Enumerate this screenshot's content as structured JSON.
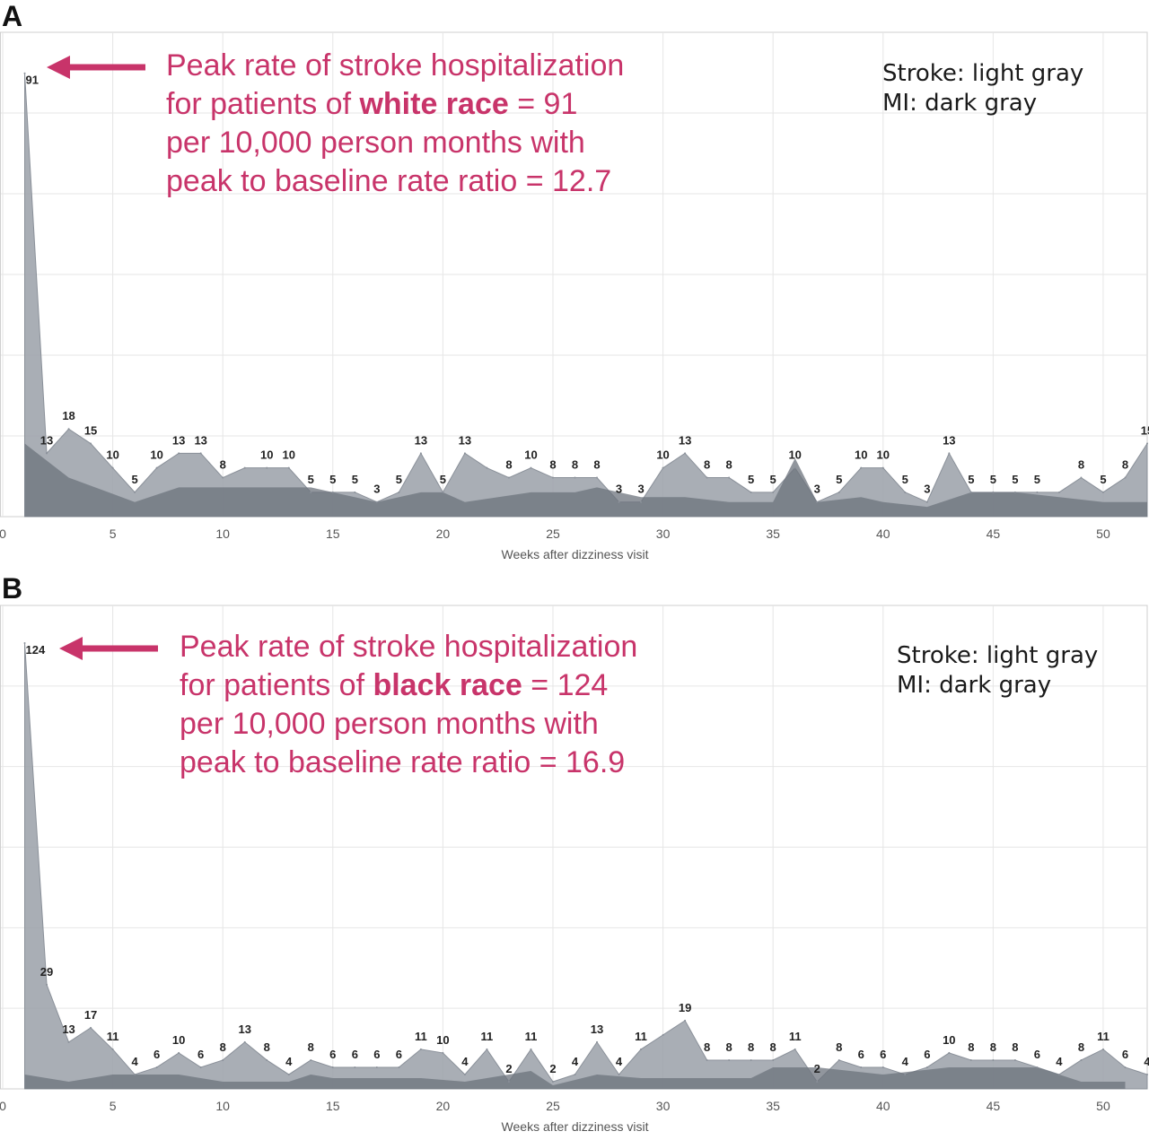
{
  "panels": [
    {
      "letter": "A",
      "annotation": {
        "line1": "Peak rate of stroke hospitalization",
        "line2_pre": "for patients of ",
        "line2_bold": "white race",
        "line2_post": " = 91",
        "line3": "per 10,000 person months with",
        "line4": "peak to baseline rate ratio = 12.7"
      },
      "legend": {
        "stroke": "Stroke: light gray",
        "mi": "MI: dark gray"
      },
      "xlabel": "Weeks after dizziness visit"
    },
    {
      "letter": "B",
      "annotation": {
        "line1": "Peak rate of stroke hospitalization",
        "line2_pre": "for patients of ",
        "line2_bold": "black race",
        "line2_post": " = 124",
        "line3": "per 10,000 person months with",
        "line4": "peak to baseline rate ratio = 16.9"
      },
      "legend": {
        "stroke": "Stroke: light gray",
        "mi": "MI: dark gray"
      },
      "xlabel": "Weeks after dizziness visit"
    }
  ],
  "colors": {
    "stroke": "#9aa0a8",
    "mi": "#6c737c",
    "annotation": "#c8346a",
    "grid": "#e6e6e6"
  },
  "chart_data": [
    {
      "type": "area",
      "xlabel": "Weeks after dizziness visit",
      "xlim": [
        0,
        52
      ],
      "xticks": [
        0,
        5,
        10,
        15,
        20,
        25,
        30,
        35,
        40,
        45,
        50
      ],
      "ylim": [
        0,
        95
      ],
      "series": [
        {
          "name": "Stroke",
          "x": [
            1,
            2,
            3,
            4,
            5,
            6,
            7,
            8,
            9,
            10,
            11,
            12,
            13,
            14,
            15,
            16,
            17,
            18,
            19,
            20,
            21,
            22,
            23,
            24,
            25,
            26,
            27,
            28,
            29,
            30,
            31,
            32,
            33,
            34,
            35,
            36,
            37,
            38,
            39,
            40,
            41,
            42,
            43,
            44,
            45,
            46,
            47,
            48,
            49,
            50,
            51,
            52
          ],
          "values": [
            91,
            13,
            18,
            15,
            10,
            5,
            10,
            13,
            13,
            8,
            10,
            10,
            10,
            5,
            5,
            5,
            3,
            5,
            13,
            5,
            13,
            10,
            8,
            10,
            8,
            8,
            8,
            3,
            3,
            10,
            13,
            8,
            8,
            5,
            5,
            10,
            3,
            5,
            10,
            10,
            5,
            3,
            13,
            5,
            5,
            5,
            5,
            5,
            8,
            5,
            8,
            15
          ],
          "labels": [
            91,
            13,
            18,
            15,
            10,
            5,
            10,
            13,
            13,
            8,
            null,
            10,
            10,
            5,
            5,
            5,
            3,
            5,
            13,
            5,
            13,
            null,
            8,
            10,
            8,
            8,
            8,
            3,
            3,
            10,
            13,
            8,
            8,
            5,
            5,
            10,
            3,
            5,
            10,
            10,
            5,
            3,
            13,
            5,
            5,
            5,
            5,
            null,
            8,
            5,
            8,
            15
          ]
        },
        {
          "name": "MI",
          "x": [
            1,
            3,
            6,
            8,
            10,
            12,
            14,
            17,
            19,
            20,
            21,
            24,
            26,
            27,
            29,
            31,
            33,
            35,
            36,
            37,
            39,
            40,
            42,
            44,
            46,
            48,
            50,
            52
          ],
          "values": [
            15,
            8,
            3,
            6,
            6,
            6,
            6,
            3,
            5,
            5,
            3,
            5,
            5,
            6,
            4,
            4,
            3,
            3,
            12,
            3,
            4,
            3,
            2,
            5,
            5,
            4,
            3,
            3
          ]
        }
      ]
    },
    {
      "type": "area",
      "xlabel": "Weeks after dizziness visit",
      "xlim": [
        0,
        52
      ],
      "xticks": [
        0,
        5,
        10,
        15,
        20,
        25,
        30,
        35,
        40,
        45,
        50
      ],
      "ylim": [
        0,
        128
      ],
      "series": [
        {
          "name": "Stroke",
          "x": [
            1,
            2,
            3,
            4,
            5,
            6,
            7,
            8,
            9,
            10,
            11,
            12,
            13,
            14,
            15,
            16,
            17,
            18,
            19,
            20,
            21,
            22,
            23,
            24,
            25,
            26,
            27,
            28,
            29,
            30,
            31,
            32,
            33,
            34,
            35,
            36,
            37,
            38,
            39,
            40,
            41,
            42,
            43,
            44,
            45,
            46,
            47,
            48,
            49,
            50,
            51,
            52
          ],
          "values": [
            124,
            29,
            13,
            17,
            11,
            4,
            6,
            10,
            6,
            8,
            13,
            8,
            4,
            8,
            6,
            6,
            6,
            6,
            11,
            10,
            4,
            11,
            2,
            11,
            2,
            4,
            13,
            4,
            11,
            15,
            19,
            8,
            8,
            8,
            8,
            11,
            2,
            8,
            6,
            6,
            4,
            6,
            10,
            8,
            8,
            8,
            6,
            4,
            8,
            11,
            6,
            4
          ],
          "labels": [
            124,
            29,
            13,
            17,
            11,
            4,
            6,
            10,
            6,
            8,
            13,
            8,
            4,
            8,
            6,
            6,
            6,
            6,
            11,
            10,
            4,
            11,
            2,
            11,
            2,
            4,
            13,
            4,
            11,
            null,
            19,
            8,
            8,
            8,
            8,
            11,
            2,
            8,
            6,
            6,
            4,
            6,
            10,
            8,
            8,
            8,
            6,
            4,
            8,
            11,
            6,
            4
          ]
        },
        {
          "name": "MI",
          "x": [
            1,
            3,
            5,
            8,
            10,
            13,
            14,
            15,
            19,
            21,
            24,
            25,
            27,
            29,
            34,
            35,
            37,
            40,
            43,
            47,
            49,
            51
          ],
          "values": [
            4,
            2,
            4,
            4,
            2,
            2,
            4,
            3,
            3,
            2,
            5,
            1,
            4,
            3,
            3,
            6,
            6,
            4,
            6,
            6,
            2,
            2
          ]
        }
      ]
    }
  ]
}
